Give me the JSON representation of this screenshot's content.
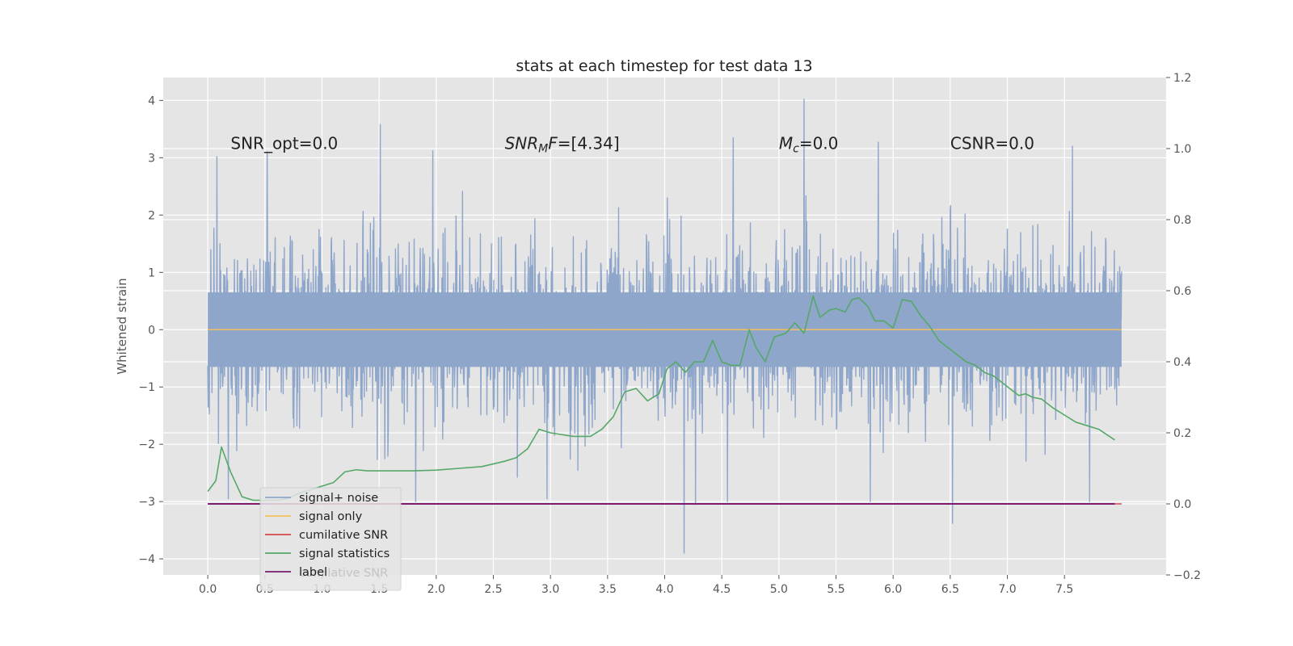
{
  "chart_data": {
    "type": "line",
    "title": "stats at each timestep for test data 13",
    "xlabel": "",
    "ylabel": "Whitened strain",
    "grid": true,
    "legend_placement": "lower-left",
    "xlim": [
      -0.39,
      8.39
    ],
    "ylim": [
      -4.28,
      4.4
    ],
    "y2lim": [
      -0.2,
      1.2
    ],
    "x_ticks": [
      "0.0",
      "0.5",
      "1.0",
      "1.5",
      "2.0",
      "2.5",
      "3.0",
      "3.5",
      "4.0",
      "4.5",
      "5.0",
      "5.5",
      "6.0",
      "6.5",
      "7.0",
      "7.5"
    ],
    "y_ticks": [
      "−4",
      "−3",
      "−2",
      "−1",
      "0",
      "1",
      "2",
      "3",
      "4"
    ],
    "y2_ticks": [
      "−0.2",
      "0.0",
      "0.2",
      "0.4",
      "0.6",
      "0.8",
      "1.0",
      "1.2"
    ],
    "y_tick_values": [
      -4,
      -3,
      -2,
      -1,
      0,
      1,
      2,
      3,
      4
    ],
    "y2_tick_values": [
      -0.2,
      0.0,
      0.2,
      0.4,
      0.6,
      0.8,
      1.0,
      1.2
    ],
    "annotations": [
      {
        "text": "SNR_opt=0.0",
        "x": 0.2,
        "y": 3.25
      },
      {
        "text": "SNR_MF=[4.34]",
        "x": 2.6,
        "y": 3.25
      },
      {
        "text": "M_c=0.0",
        "x": 5.0,
        "y": 3.25
      },
      {
        "text": "CSNR=0.0",
        "x": 6.5,
        "y": 3.25
      }
    ],
    "series": [
      {
        "name": "signal+ noise",
        "color": "#8fa6cb",
        "axis": "left",
        "x_range": [
          0.0,
          8.0
        ],
        "typical_band": [
          -1.8,
          2.2
        ],
        "envelope_min": -3.9,
        "envelope_max": 4.02,
        "peaks": [
          [
            0.08,
            3.02
          ],
          [
            0.52,
            3.1
          ],
          [
            1.51,
            3.58
          ],
          [
            1.97,
            3.12
          ],
          [
            4.6,
            3.35
          ],
          [
            5.22,
            4.02
          ],
          [
            5.87,
            3.27
          ],
          [
            7.57,
            3.2
          ]
        ],
        "troughs": [
          [
            0.18,
            -2.95
          ],
          [
            1.82,
            -3.0
          ],
          [
            2.97,
            -2.95
          ],
          [
            4.17,
            -3.9
          ],
          [
            4.27,
            -3.05
          ],
          [
            4.55,
            -3.0
          ],
          [
            5.8,
            -3.0
          ],
          [
            6.52,
            -3.38
          ],
          [
            7.72,
            -3.0
          ]
        ]
      },
      {
        "name": "signal only",
        "color": "#f4bf5c",
        "axis": "left",
        "x": [
          0.0,
          8.0
        ],
        "values": [
          0.0,
          0.0
        ]
      },
      {
        "name": "cumilative SNR",
        "color": "#d6494b",
        "axis": "right",
        "x": [
          0.0,
          8.0
        ],
        "values": [
          0.0,
          0.0
        ]
      },
      {
        "name": "signal statistics",
        "color": "#55a868",
        "axis": "right",
        "x": [
          0.0,
          0.07,
          0.12,
          0.2,
          0.3,
          0.4,
          0.5,
          0.6,
          0.7,
          0.8,
          0.9,
          1.0,
          1.1,
          1.2,
          1.3,
          1.4,
          1.6,
          1.8,
          2.0,
          2.2,
          2.4,
          2.6,
          2.7,
          2.8,
          2.9,
          3.0,
          3.2,
          3.35,
          3.45,
          3.55,
          3.65,
          3.75,
          3.85,
          3.95,
          4.02,
          4.1,
          4.18,
          4.26,
          4.34,
          4.42,
          4.5,
          4.58,
          4.66,
          4.74,
          4.8,
          4.88,
          4.96,
          5.06,
          5.14,
          5.22,
          5.3,
          5.36,
          5.44,
          5.5,
          5.58,
          5.64,
          5.7,
          5.78,
          5.84,
          5.92,
          6.0,
          6.08,
          6.16,
          6.24,
          6.32,
          6.4,
          6.48,
          6.56,
          6.64,
          6.72,
          6.8,
          6.88,
          6.96,
          7.04,
          7.1,
          7.16,
          7.22,
          7.3,
          7.4,
          7.5,
          7.6,
          7.7,
          7.8,
          7.94
        ],
        "values": [
          0.035,
          0.065,
          0.16,
          0.09,
          0.02,
          0.01,
          0.01,
          0.01,
          0.015,
          0.03,
          0.04,
          0.05,
          0.06,
          0.09,
          0.096,
          0.093,
          0.093,
          0.093,
          0.095,
          0.1,
          0.105,
          0.12,
          0.13,
          0.155,
          0.21,
          0.2,
          0.19,
          0.19,
          0.21,
          0.245,
          0.315,
          0.325,
          0.29,
          0.31,
          0.38,
          0.4,
          0.37,
          0.4,
          0.4,
          0.46,
          0.4,
          0.39,
          0.39,
          0.49,
          0.44,
          0.4,
          0.47,
          0.48,
          0.51,
          0.48,
          0.585,
          0.525,
          0.545,
          0.55,
          0.54,
          0.575,
          0.58,
          0.555,
          0.515,
          0.515,
          0.495,
          0.575,
          0.57,
          0.53,
          0.5,
          0.46,
          0.44,
          0.42,
          0.4,
          0.39,
          0.37,
          0.36,
          0.34,
          0.32,
          0.305,
          0.31,
          0.3,
          0.295,
          0.27,
          0.25,
          0.23,
          0.22,
          0.21,
          0.18
        ]
      },
      {
        "name": "label",
        "color": "#7b1d6c",
        "axis": "right",
        "x": [
          0.0,
          7.94
        ],
        "values": [
          0.0,
          0.0
        ]
      }
    ],
    "legend_underlay_text": "cumilative SNR"
  }
}
